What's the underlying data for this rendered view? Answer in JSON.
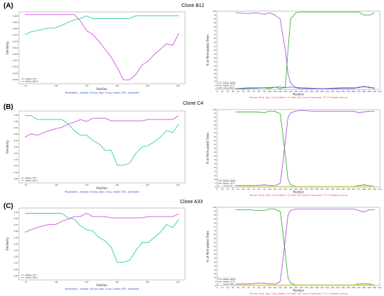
{
  "colors": {
    "magenta": "#d44ee6",
    "teal": "#2fcf9b",
    "green": "#21a52b",
    "purple": "#9a44d2",
    "blue": "#3050e0",
    "yellow": "#e6d41c",
    "params_blue": "#1a3fd8",
    "params_red": "#e02020"
  },
  "rows": [
    {
      "letter": "(A)",
      "clone": "Clone B12",
      "left_params": "Parameters - window: 100 bp, step: 10 bp, model: GTR - optimized",
      "right_params": "Window: 90 bp, Step: 10 bp, GapProc: On, Reps: 100, Kimura 2-parameter, TT: 2.0, Neighbor-Joining"
    },
    {
      "letter": "(B)",
      "clone": "Clone C4",
      "left_params": "Parameters - window: 100 bp, step: 10 bp, model: GTR - optimized",
      "right_params": "Window: 90 bp, Step: 10 bp, GapProc: On, Reps: 100, Kimura 2-parameter, TT: 2.0, Neighbor-Joining"
    },
    {
      "letter": "(C)",
      "clone": "Clone A33",
      "left_params": "Parameters - window: 100 bp, step: 10 bp, model: GTR - optimized",
      "right_params": "Window: 90 bp, Step: 10 bp, GapProc: On, Reps: 100, Kimura 2-parameter, TT: 2.0, Neighbor-Joining"
    }
  ],
  "chart_data": [
    {
      "id": "A-similarity",
      "type": "line",
      "xlabel": "Position",
      "ylabel": "Similarity",
      "x_ticks": [
        "50",
        "100",
        "150",
        "200",
        "250",
        "300"
      ],
      "y_ticks": [
        "0.990",
        "0.985",
        "0.980",
        "0.975",
        "0.970",
        "0.965",
        "0.960",
        "0.955",
        "0.950",
        "0.945",
        "0.940"
      ],
      "xlim": [
        40,
        310
      ],
      "ylim": [
        0.938,
        0.992
      ],
      "legend": "bottom-left",
      "series": [
        {
          "name": "RefSe_H77",
          "color": "magenta",
          "x": [
            50,
            60,
            70,
            80,
            90,
            100,
            110,
            120,
            130,
            140,
            150,
            160,
            170,
            180,
            190,
            200,
            210,
            220,
            230,
            240,
            250,
            260,
            270,
            280,
            290,
            300
          ],
          "values": [
            0.99,
            0.99,
            0.99,
            0.99,
            0.99,
            0.99,
            0.99,
            0.99,
            0.99,
            0.985,
            0.978,
            0.975,
            0.97,
            0.964,
            0.958,
            0.95,
            0.941,
            0.941,
            0.945,
            0.952,
            0.955,
            0.96,
            0.964,
            0.968,
            0.967,
            0.976
          ]
        },
        {
          "name": "RefSe_NZL1",
          "color": "teal",
          "x": [
            50,
            60,
            70,
            80,
            90,
            100,
            110,
            120,
            130,
            140,
            150,
            160,
            170,
            180,
            190,
            200,
            210,
            220,
            230,
            240,
            250,
            260,
            270,
            280,
            290,
            300
          ],
          "values": [
            0.975,
            0.977,
            0.978,
            0.979,
            0.98,
            0.98,
            0.982,
            0.984,
            0.986,
            0.987,
            0.989,
            0.987,
            0.987,
            0.987,
            0.987,
            0.987,
            0.987,
            0.987,
            0.989,
            0.989,
            0.989,
            0.989,
            0.989,
            0.989,
            0.989,
            0.989
          ]
        }
      ]
    },
    {
      "id": "A-bootscan",
      "type": "line",
      "xlabel": "Position",
      "ylabel": "% of Permutated Trees",
      "x_ticks": [
        "0",
        "10",
        "20",
        "30",
        "40",
        "50",
        "60",
        "70",
        "80",
        "90",
        "100",
        "110",
        "120",
        "130",
        "140",
        "150",
        "160",
        "170",
        "180",
        "190",
        "200",
        "210",
        "220",
        "230",
        "240",
        "250",
        "260",
        "270",
        "280",
        "290",
        "300",
        "310"
      ],
      "y_ticks": [
        "0",
        "5",
        "10",
        "15",
        "20",
        "25",
        "30",
        "35",
        "40",
        "45",
        "50",
        "55",
        "60",
        "65",
        "70",
        "75",
        "80",
        "85",
        "90",
        "95",
        "100"
      ],
      "xlim": [
        0,
        310
      ],
      "ylim": [
        0,
        100
      ],
      "legend": "bottom-left",
      "series": [
        {
          "name": "RefSe_NZL1",
          "color": "green",
          "x": [
            35,
            60,
            75,
            90,
            100,
            110,
            120,
            125,
            130,
            135,
            140,
            150,
            160,
            180,
            200,
            220,
            240,
            260,
            270,
            280,
            290,
            300
          ],
          "values": [
            1,
            2,
            2,
            2,
            1,
            3,
            1,
            2,
            3,
            50,
            90,
            98,
            99,
            99,
            99,
            99,
            99,
            99,
            99,
            95,
            95,
            98
          ]
        },
        {
          "name": "RefSe_H77",
          "color": "purple",
          "x": [
            35,
            60,
            75,
            90,
            100,
            110,
            120,
            125,
            130,
            135,
            140,
            150,
            160,
            180,
            200,
            220,
            240,
            260,
            270,
            280,
            290,
            300
          ],
          "values": [
            98,
            97,
            98,
            96,
            98,
            95,
            90,
            70,
            50,
            20,
            8,
            2,
            1,
            1,
            1,
            1,
            1,
            1,
            3,
            3,
            3,
            1
          ]
        },
        {
          "name": "Clone B12",
          "color": "blue",
          "x": [
            35,
            60,
            90,
            120,
            130,
            140,
            160,
            200,
            240,
            270,
            280,
            290,
            300
          ],
          "values": [
            1,
            1,
            2,
            3,
            2,
            3,
            2,
            1,
            2,
            2,
            4,
            2,
            2
          ]
        }
      ]
    },
    {
      "id": "B-similarity",
      "type": "line",
      "xlabel": "Position",
      "ylabel": "Similarity",
      "x_ticks": [
        "50",
        "100",
        "150",
        "200",
        "250",
        "300"
      ],
      "y_ticks": [
        "0.99",
        "0.98",
        "0.97",
        "0.96",
        "0.95",
        "0.94",
        "0.93",
        "0.92",
        "0.91",
        "0.90",
        "0.89"
      ],
      "xlim": [
        40,
        310
      ],
      "ylim": [
        0.885,
        0.995
      ],
      "legend": "bottom-left",
      "series": [
        {
          "name": "RefSe_H77",
          "color": "magenta",
          "x": [
            50,
            60,
            70,
            80,
            90,
            100,
            110,
            120,
            130,
            140,
            150,
            160,
            170,
            180,
            190,
            200,
            210,
            220,
            230,
            240,
            250,
            260,
            270,
            280,
            290,
            300
          ],
          "values": [
            0.955,
            0.96,
            0.958,
            0.962,
            0.965,
            0.968,
            0.97,
            0.975,
            0.978,
            0.982,
            0.979,
            0.984,
            0.984,
            0.984,
            0.98,
            0.98,
            0.98,
            0.98,
            0.98,
            0.98,
            0.982,
            0.982,
            0.982,
            0.982,
            0.982,
            0.988
          ]
        },
        {
          "name": "RefSe_NZL1",
          "color": "teal",
          "x": [
            50,
            60,
            70,
            80,
            90,
            100,
            110,
            120,
            130,
            140,
            150,
            160,
            170,
            180,
            190,
            200,
            210,
            220,
            230,
            240,
            250,
            260,
            270,
            280,
            290,
            300
          ],
          "values": [
            0.988,
            0.988,
            0.982,
            0.982,
            0.982,
            0.982,
            0.982,
            0.975,
            0.965,
            0.958,
            0.958,
            0.95,
            0.945,
            0.935,
            0.935,
            0.912,
            0.912,
            0.915,
            0.93,
            0.94,
            0.942,
            0.948,
            0.955,
            0.965,
            0.962,
            0.975
          ]
        }
      ]
    },
    {
      "id": "B-bootscan",
      "type": "line",
      "xlabel": "Position",
      "ylabel": "% of Permutated Trees",
      "x_ticks": [
        "0",
        "10",
        "20",
        "30",
        "40",
        "50",
        "60",
        "70",
        "80",
        "90",
        "100",
        "110",
        "120",
        "130",
        "140",
        "150",
        "160",
        "170",
        "180",
        "190",
        "200",
        "210",
        "220",
        "230",
        "240",
        "250",
        "260",
        "270",
        "280",
        "290",
        "300",
        "310"
      ],
      "y_ticks": [
        "0",
        "5",
        "10",
        "15",
        "20",
        "25",
        "30",
        "35",
        "40",
        "45",
        "50",
        "55",
        "60",
        "65",
        "70",
        "75",
        "80",
        "85",
        "90",
        "95",
        "100"
      ],
      "xlim": [
        0,
        310
      ],
      "ylim": [
        0,
        100
      ],
      "legend": "bottom-left",
      "series": [
        {
          "name": "RefSe_NZL1",
          "color": "green",
          "x": [
            35,
            60,
            75,
            90,
            100,
            110,
            115,
            120,
            125,
            130,
            135,
            140,
            150,
            160,
            180,
            200,
            220,
            240,
            260,
            270,
            280,
            290,
            300
          ],
          "values": [
            97,
            97,
            97,
            96,
            98,
            98,
            96,
            95,
            70,
            40,
            10,
            3,
            1,
            1,
            1,
            1,
            1,
            1,
            1,
            2,
            3,
            2,
            1
          ]
        },
        {
          "name": "RefSe_H77",
          "color": "purple",
          "x": [
            35,
            60,
            75,
            90,
            100,
            110,
            115,
            120,
            125,
            130,
            135,
            140,
            150,
            160,
            180,
            200,
            220,
            240,
            260,
            270,
            280,
            290,
            300
          ],
          "values": [
            2,
            2,
            2,
            3,
            2,
            2,
            3,
            5,
            30,
            60,
            90,
            96,
            98,
            99,
            98,
            98,
            98,
            98,
            98,
            96,
            97,
            98,
            98
          ]
        },
        {
          "name": "Clone C4",
          "color": "yellow",
          "x": [
            35,
            300
          ],
          "values": [
            1,
            1
          ]
        }
      ]
    },
    {
      "id": "C-similarity",
      "type": "line",
      "xlabel": "Position",
      "ylabel": "Similarity",
      "x_ticks": [
        "50",
        "100",
        "150",
        "200",
        "250",
        "300"
      ],
      "y_ticks": [
        "0.99",
        "0.98",
        "0.97",
        "0.96",
        "0.95",
        "0.94",
        "0.93",
        "0.92",
        "0.91",
        "0.90",
        "0.89"
      ],
      "xlim": [
        40,
        310
      ],
      "ylim": [
        0.885,
        0.995
      ],
      "legend": "bottom-left",
      "series": [
        {
          "name": "RefSe_H77",
          "color": "magenta",
          "x": [
            50,
            60,
            70,
            80,
            90,
            100,
            110,
            120,
            130,
            140,
            150,
            160,
            170,
            180,
            190,
            200,
            210,
            220,
            230,
            240,
            250,
            260,
            270,
            280,
            290,
            300
          ],
          "values": [
            0.958,
            0.962,
            0.965,
            0.968,
            0.97,
            0.97,
            0.975,
            0.978,
            0.982,
            0.982,
            0.987,
            0.982,
            0.982,
            0.982,
            0.98,
            0.98,
            0.98,
            0.98,
            0.98,
            0.98,
            0.982,
            0.982,
            0.982,
            0.982,
            0.982,
            0.986
          ]
        },
        {
          "name": "RefSe_NZL1",
          "color": "teal",
          "x": [
            50,
            60,
            70,
            80,
            90,
            100,
            110,
            120,
            130,
            140,
            150,
            160,
            170,
            180,
            190,
            200,
            210,
            220,
            230,
            240,
            250,
            260,
            270,
            280,
            290,
            300
          ],
          "values": [
            0.987,
            0.987,
            0.987,
            0.987,
            0.987,
            0.987,
            0.987,
            0.98,
            0.978,
            0.968,
            0.962,
            0.96,
            0.95,
            0.945,
            0.935,
            0.912,
            0.912,
            0.915,
            0.93,
            0.942,
            0.942,
            0.95,
            0.958,
            0.97,
            0.965,
            0.978
          ]
        }
      ]
    },
    {
      "id": "C-bootscan",
      "type": "line",
      "xlabel": "Position",
      "ylabel": "% of Permutated Trees",
      "x_ticks": [
        "0",
        "10",
        "20",
        "30",
        "40",
        "50",
        "60",
        "70",
        "80",
        "90",
        "100",
        "110",
        "120",
        "130",
        "140",
        "150",
        "160",
        "170",
        "180",
        "190",
        "200",
        "210",
        "220",
        "230",
        "240",
        "250",
        "260",
        "270",
        "280",
        "290",
        "300",
        "310"
      ],
      "y_ticks": [
        "0",
        "5",
        "10",
        "15",
        "20",
        "25",
        "30",
        "35",
        "40",
        "45",
        "50",
        "55",
        "60",
        "65",
        "70",
        "75",
        "80",
        "85",
        "90",
        "95",
        "100"
      ],
      "xlim": [
        0,
        310
      ],
      "ylim": [
        0,
        100
      ],
      "legend": "bottom-left",
      "series": [
        {
          "name": "RefSe_NZL1",
          "color": "green",
          "x": [
            35,
            60,
            75,
            90,
            100,
            110,
            115,
            120,
            125,
            130,
            135,
            140,
            150,
            160,
            180,
            200,
            220,
            240,
            260,
            270,
            280,
            290,
            300
          ],
          "values": [
            97,
            97,
            96,
            96,
            98,
            98,
            96,
            95,
            70,
            40,
            10,
            3,
            1,
            1,
            1,
            1,
            1,
            1,
            1,
            2,
            2,
            2,
            1
          ]
        },
        {
          "name": "RefSe_H77",
          "color": "purple",
          "x": [
            35,
            60,
            75,
            90,
            100,
            110,
            115,
            120,
            125,
            130,
            135,
            140,
            150,
            160,
            180,
            200,
            220,
            240,
            260,
            270,
            280,
            290,
            300
          ],
          "values": [
            2,
            2,
            3,
            3,
            2,
            2,
            3,
            5,
            30,
            60,
            90,
            96,
            98,
            98,
            98,
            98,
            98,
            98,
            98,
            96,
            94,
            97,
            97
          ]
        },
        {
          "name": "Clone A33",
          "color": "yellow",
          "x": [
            35,
            300
          ],
          "values": [
            1,
            1
          ]
        }
      ]
    }
  ]
}
